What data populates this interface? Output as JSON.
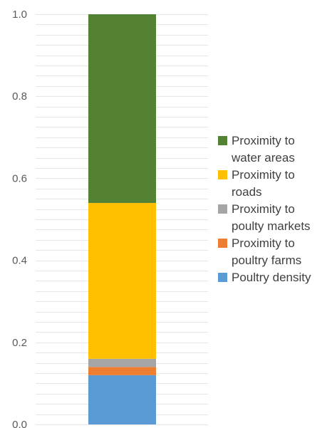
{
  "chart_data": {
    "type": "bar",
    "stacked": true,
    "categories": [
      ""
    ],
    "ylim": [
      0,
      1.0
    ],
    "yticks": [
      0.0,
      0.2,
      0.4,
      0.6,
      0.8,
      1.0
    ],
    "ytick_labels": [
      "0.0",
      "0.2",
      "0.4",
      "0.6",
      "0.8",
      "1.0"
    ],
    "grid": true,
    "legend_position": "right",
    "series": [
      {
        "name": "Poultry density",
        "values": [
          0.12
        ],
        "color": "#5b9bd5"
      },
      {
        "name": "Proximity to poultry farms",
        "values": [
          0.02
        ],
        "color": "#ed7d31"
      },
      {
        "name": "Proximity to poulty markets",
        "values": [
          0.02
        ],
        "color": "#a5a5a5"
      },
      {
        "name": "Proximity to roads",
        "values": [
          0.38
        ],
        "color": "#ffc000"
      },
      {
        "name": "Proximity to water areas",
        "values": [
          0.46
        ],
        "color": "#548235"
      }
    ]
  },
  "legend": [
    {
      "label": "Proximity to water areas",
      "color": "#548235"
    },
    {
      "label": "Proximity to roads",
      "color": "#ffc000"
    },
    {
      "label": "Proximity to poulty markets",
      "color": "#a5a5a5"
    },
    {
      "label": "Proximity to poultry farms",
      "color": "#ed7d31"
    },
    {
      "label": "Poultry density",
      "color": "#5b9bd5"
    }
  ]
}
